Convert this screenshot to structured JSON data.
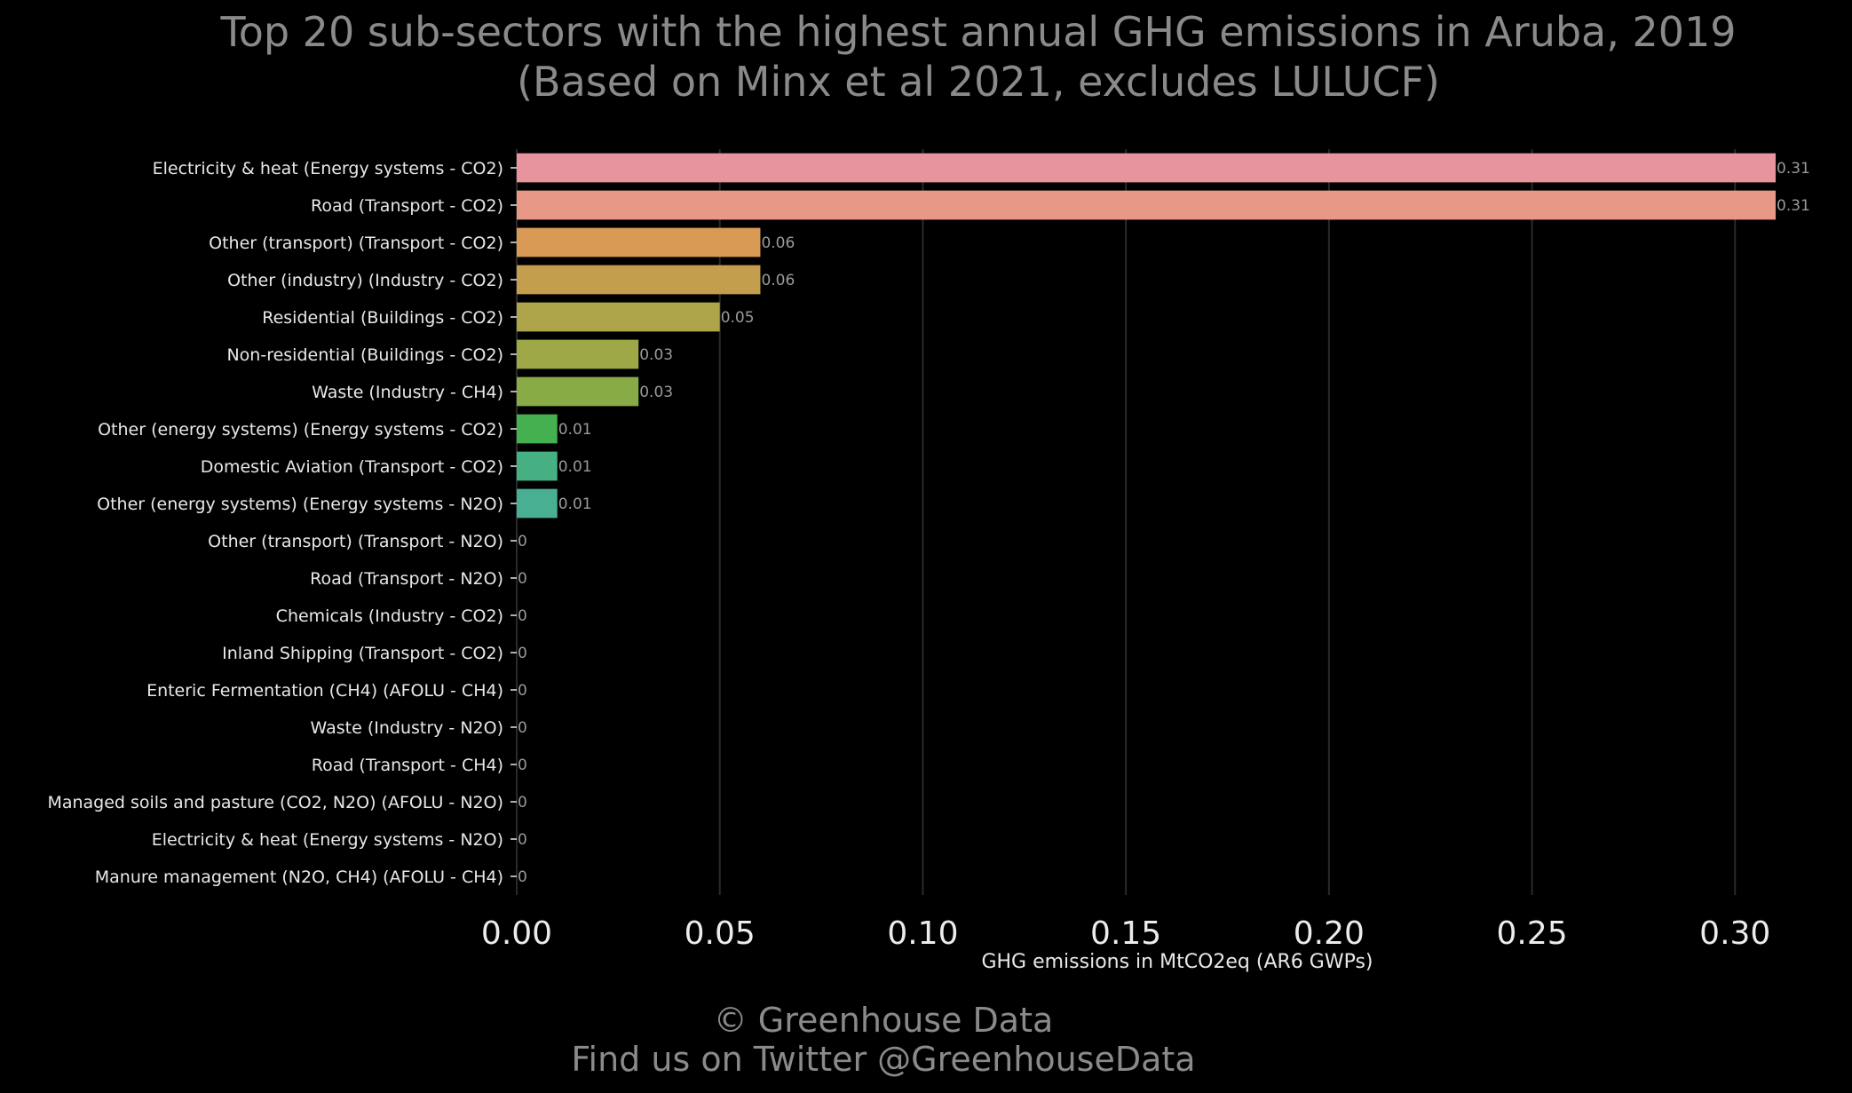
{
  "chart_data": {
    "type": "bar",
    "orientation": "horizontal",
    "title": "Top 20 sub-sectors with the highest annual GHG emissions in Aruba, 2019",
    "subtitle": "(Based on Minx et al 2021, excludes LULUCF)",
    "xlabel": "GHG emissions in MtCO2eq (AR6 GWPs)",
    "ylabel": "",
    "xlim": [
      0,
      0.31
    ],
    "xticks": [
      "0.00",
      "0.05",
      "0.10",
      "0.15",
      "0.20",
      "0.25",
      "0.30"
    ],
    "grid": "vertical",
    "categories": [
      "Electricity & heat (Energy systems - CO2)",
      "Road (Transport - CO2)",
      "Other (transport) (Transport - CO2)",
      "Other (industry) (Industry - CO2)",
      "Residential (Buildings - CO2)",
      "Non-residential (Buildings - CO2)",
      "Waste (Industry - CH4)",
      "Other (energy systems) (Energy systems - CO2)",
      "Domestic Aviation (Transport - CO2)",
      "Other (energy systems) (Energy systems - N2O)",
      "Other (transport) (Transport - N2O)",
      "Road (Transport - N2O)",
      "Chemicals (Industry - CO2)",
      "Inland Shipping (Transport - CO2)",
      "Enteric Fermentation (CH4) (AFOLU - CH4)",
      "Waste (Industry - N2O)",
      "Road (Transport - CH4)",
      "Managed soils and pasture (CO2, N2O) (AFOLU - N2O)",
      "Electricity & heat (Energy systems - N2O)",
      "Manure management (N2O, CH4) (AFOLU - CH4)"
    ],
    "values": [
      0.31,
      0.31,
      0.06,
      0.06,
      0.05,
      0.03,
      0.03,
      0.01,
      0.01,
      0.01,
      0,
      0,
      0,
      0,
      0,
      0,
      0,
      0,
      0,
      0
    ],
    "value_labels": [
      "0.31",
      "0.31",
      "0.06",
      "0.06",
      "0.05",
      "0.03",
      "0.03",
      "0.01",
      "0.01",
      "0.01",
      "0",
      "0",
      "0",
      "0",
      "0",
      "0",
      "0",
      "0",
      "0",
      "0"
    ],
    "colors": [
      "#e8949f",
      "#e89986",
      "#d89a55",
      "#c39f4d",
      "#aea449",
      "#9fa847",
      "#88ab45",
      "#45b04f",
      "#47b082",
      "#49af93",
      "#4dae9f",
      "#4fadab",
      "#52acb7",
      "#55abc3",
      "#58aacf",
      "#5ba9db",
      "#5ea8e6",
      "#8aa0e6",
      "#a89ae0",
      "#c296da"
    ]
  },
  "footer": {
    "line1": "© Greenhouse Data",
    "line2": "Find us on Twitter @GreenhouseData"
  }
}
